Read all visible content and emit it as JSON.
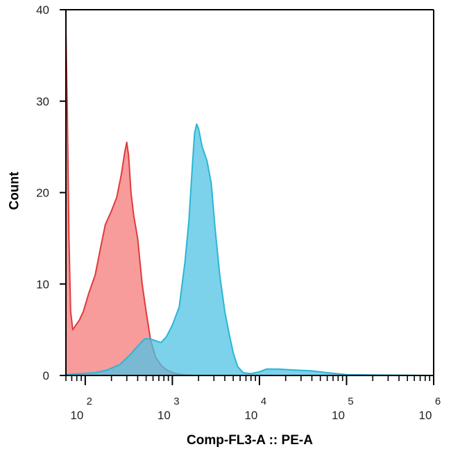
{
  "chart_data": {
    "type": "area",
    "xlabel": "Comp-FL3-A :: PE-A",
    "ylabel": "Count",
    "x_scale": "log",
    "xlim": [
      60,
      1000000
    ],
    "ylim": [
      0,
      40
    ],
    "yticks": [
      {
        "value": 0,
        "label": "0"
      },
      {
        "value": 10,
        "label": "10"
      },
      {
        "value": 20,
        "label": "20"
      },
      {
        "value": 30,
        "label": "30"
      },
      {
        "value": 40,
        "label": "40"
      }
    ],
    "xticks": [
      {
        "value": 100,
        "base": "10",
        "exp": "2"
      },
      {
        "value": 1000,
        "base": "10",
        "exp": "3"
      },
      {
        "value": 10000,
        "base": "10",
        "exp": "4"
      },
      {
        "value": 100000,
        "base": "10",
        "exp": "5"
      },
      {
        "value": 1000000,
        "base": "10",
        "exp": "6"
      }
    ],
    "grid": false,
    "series": [
      {
        "color": "#e03a3a",
        "fill": "#f47a7a",
        "points": [
          [
            60,
            0
          ],
          [
            60,
            38
          ],
          [
            62,
            30
          ],
          [
            65,
            15
          ],
          [
            68,
            7
          ],
          [
            72,
            5
          ],
          [
            78,
            5.5
          ],
          [
            85,
            6
          ],
          [
            95,
            7
          ],
          [
            110,
            9
          ],
          [
            130,
            11
          ],
          [
            150,
            14
          ],
          [
            170,
            16.5
          ],
          [
            200,
            18
          ],
          [
            230,
            19.5
          ],
          [
            260,
            22
          ],
          [
            285,
            24.5
          ],
          [
            300,
            25.5
          ],
          [
            315,
            24
          ],
          [
            335,
            20
          ],
          [
            360,
            17.5
          ],
          [
            400,
            15
          ],
          [
            450,
            10
          ],
          [
            500,
            7
          ],
          [
            560,
            4
          ],
          [
            640,
            2
          ],
          [
            760,
            1
          ],
          [
            900,
            0.5
          ],
          [
            1100,
            0.2
          ],
          [
            1400,
            0.05
          ],
          [
            1800,
            0
          ]
        ]
      },
      {
        "color": "#29b6d6",
        "fill": "#4fc3e3",
        "points": [
          [
            60,
            0.1
          ],
          [
            90,
            0.2
          ],
          [
            130,
            0.3
          ],
          [
            180,
            0.6
          ],
          [
            250,
            1.2
          ],
          [
            330,
            2.3
          ],
          [
            400,
            3.2
          ],
          [
            480,
            4
          ],
          [
            560,
            4
          ],
          [
            640,
            3.8
          ],
          [
            740,
            3.6
          ],
          [
            850,
            4.2
          ],
          [
            1000,
            5.5
          ],
          [
            1200,
            7.5
          ],
          [
            1400,
            12.5
          ],
          [
            1550,
            17
          ],
          [
            1700,
            23
          ],
          [
            1800,
            26.5
          ],
          [
            1900,
            27.5
          ],
          [
            2000,
            27
          ],
          [
            2200,
            25
          ],
          [
            2500,
            23.5
          ],
          [
            2800,
            21
          ],
          [
            3100,
            16
          ],
          [
            3500,
            11
          ],
          [
            4000,
            7
          ],
          [
            4500,
            4.5
          ],
          [
            5000,
            2.5
          ],
          [
            5600,
            1
          ],
          [
            6500,
            0.3
          ],
          [
            8000,
            0.2
          ],
          [
            10000,
            0.4
          ],
          [
            12000,
            0.7
          ],
          [
            16000,
            0.7
          ],
          [
            25000,
            0.6
          ],
          [
            40000,
            0.5
          ],
          [
            60000,
            0.3
          ],
          [
            100000,
            0.1
          ],
          [
            200000,
            0.05
          ],
          [
            1000000,
            0
          ]
        ]
      }
    ]
  }
}
